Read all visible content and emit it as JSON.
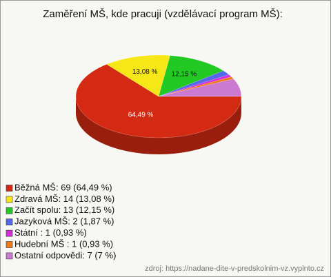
{
  "chart_data": {
    "type": "pie",
    "title": "Zaměření MŠ, kde pracuji (vzdělávací program MŠ):",
    "categories": [
      "Běžná MŠ: 69 (64,49 %)",
      "Zdravá MŠ: 14 (13,08 %)",
      "Začít spolu: 13 (12,15 %)",
      "Jazyková MŠ: 2 (1,87 %)",
      "Státní : 1 (0,93 %)",
      "Hudební MŠ : 1 (0,93 %)",
      "Ostatní odpovědi: 7 (7 %)"
    ],
    "values": [
      64.49,
      13.08,
      12.15,
      1.87,
      0.93,
      0.93,
      7
    ],
    "value_labels": [
      "64,49 %",
      "13,08 %",
      "12,15 %",
      null,
      null,
      null,
      null
    ],
    "colors": [
      "#d42a14",
      "#f6e816",
      "#22c922",
      "#5468ee",
      "#d52cd8",
      "#ee7a18",
      "#cc7ad0"
    ],
    "source": "zdroj: https://nadane-dite-v-predskolnim-vz.vyplnto.cz"
  }
}
